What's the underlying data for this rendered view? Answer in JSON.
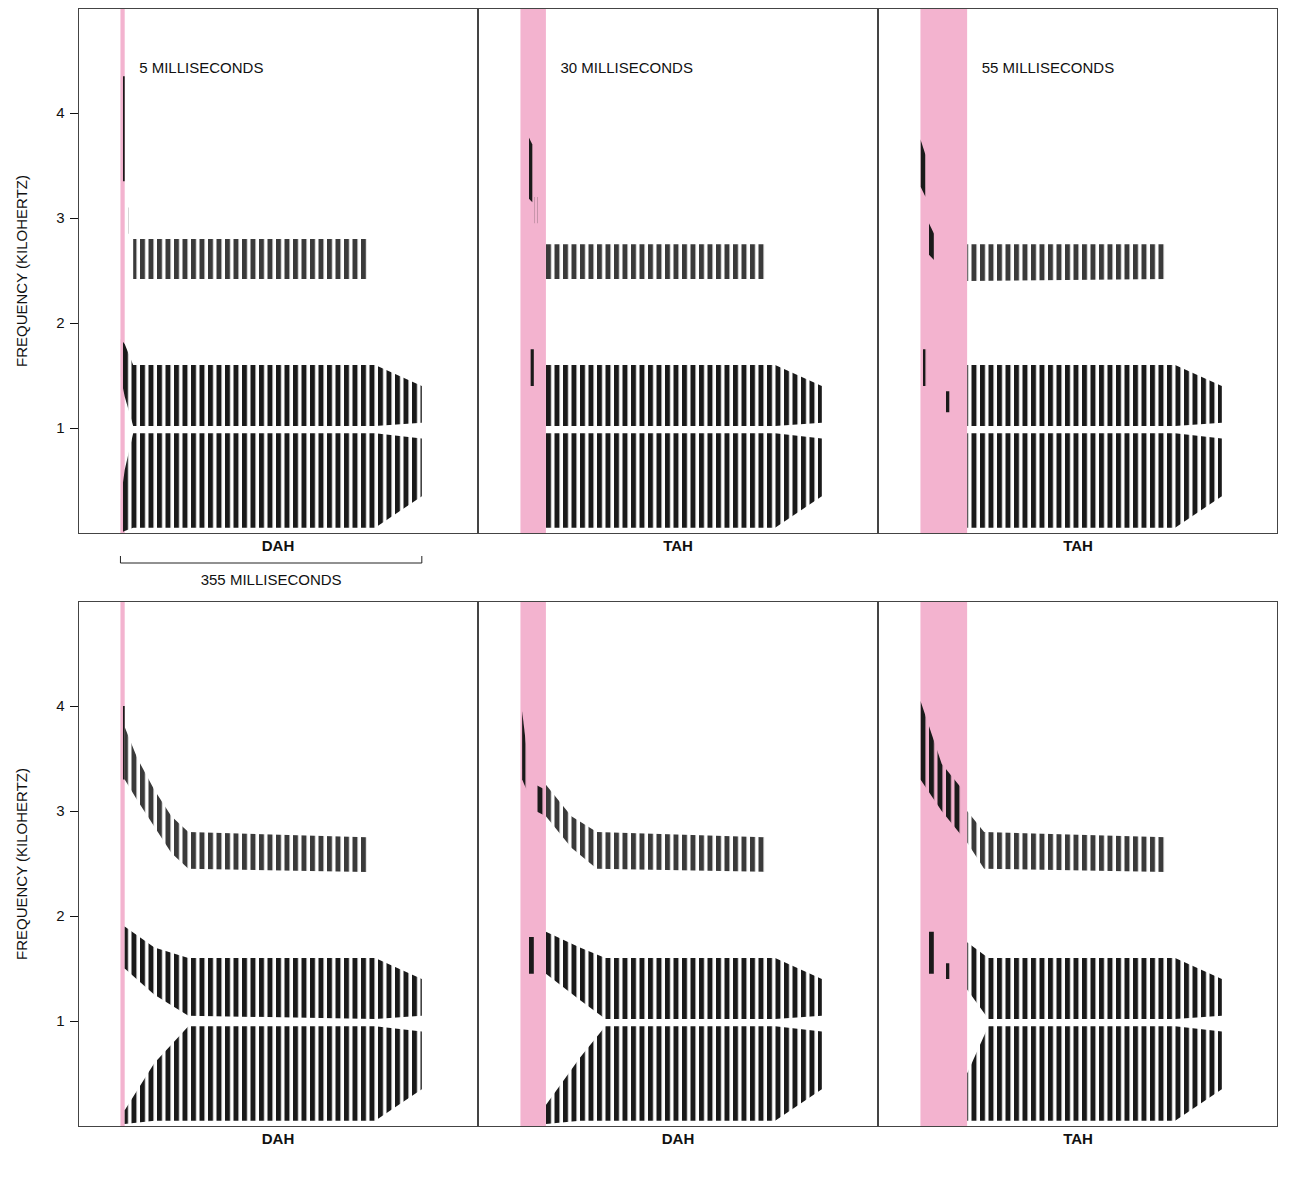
{
  "chart_data": [
    {
      "type": "spectrogram",
      "title": "5 MILLISECONDS",
      "xlabel": "DAH",
      "ylabel": "FREQUENCY (KILOHERTZ)",
      "xlim": [
        -50,
        420
      ],
      "ylim": [
        0,
        5
      ],
      "yticks": [
        1,
        2,
        3,
        4
      ],
      "tick_labels": "y",
      "grid": false,
      "aspiration": {
        "x": [
          0,
          5
        ],
        "color": "#f3b3cf"
      },
      "annotations": [
        {
          "text": "355 MILLISECONDS",
          "x": [
            0,
            355
          ]
        }
      ],
      "series": [
        {
          "color": "#1a1a1a",
          "x": [
            0,
            5
          ],
          "low": [
            3.35,
            3.35
          ],
          "high": [
            4.35,
            4.35
          ]
        },
        {
          "color": "#1a1a1a",
          "x": [
            9,
            12
          ],
          "low": [
            2.85,
            2.85
          ],
          "high": [
            3.1,
            3.1
          ]
        },
        {
          "color": "#1a1a1a",
          "x": [
            0,
            5,
            15,
            300,
            355
          ],
          "low": [
            0,
            0.02,
            0.05,
            0.05,
            0.35
          ],
          "high": [
            0.3,
            0.6,
            0.95,
            0.95,
            0.9
          ]
        },
        {
          "color": "#1a1a1a",
          "x": [
            0,
            5,
            15,
            300,
            355
          ],
          "low": [
            1.5,
            1.3,
            1.02,
            1.02,
            1.05
          ],
          "high": [
            1.85,
            1.8,
            1.6,
            1.6,
            1.4
          ]
        },
        {
          "color": "#3a3a3a",
          "x": [
            15,
            290
          ],
          "low": [
            2.42,
            2.42
          ],
          "high": [
            2.8,
            2.8
          ]
        }
      ]
    },
    {
      "type": "spectrogram",
      "title": "30 MILLISECONDS",
      "xlabel": "TAH",
      "xlim": [
        -50,
        420
      ],
      "ylim": [
        0,
        5
      ],
      "tick_labels": false,
      "grid": false,
      "aspiration": {
        "x": [
          0,
          30
        ],
        "color": "#f3b3cf"
      },
      "series": [
        {
          "color": "#1a1a1a",
          "x": [
            8,
            14
          ],
          "low": [
            3.2,
            3.15
          ],
          "high": [
            3.8,
            3.7
          ]
        },
        {
          "color": "#1a1a1a",
          "x": [
            16,
            20
          ],
          "low": [
            2.95,
            2.95
          ],
          "high": [
            3.2,
            3.2
          ]
        },
        {
          "color": "#1a1a1a",
          "x": [
            12,
            16
          ],
          "low": [
            1.4,
            1.4
          ],
          "high": [
            1.75,
            1.75
          ]
        },
        {
          "color": "#1a1a1a",
          "x": [
            30,
            300,
            355
          ],
          "low": [
            0.05,
            0.05,
            0.35
          ],
          "high": [
            0.95,
            0.95,
            0.9
          ]
        },
        {
          "color": "#1a1a1a",
          "x": [
            30,
            300,
            355
          ],
          "low": [
            1.02,
            1.02,
            1.05
          ],
          "high": [
            1.6,
            1.6,
            1.4
          ]
        },
        {
          "color": "#3a3a3a",
          "x": [
            30,
            290
          ],
          "low": [
            2.42,
            2.42
          ],
          "high": [
            2.75,
            2.75
          ]
        }
      ]
    },
    {
      "type": "spectrogram",
      "title": "55 MILLISECONDS",
      "xlabel": "TAH",
      "xlim": [
        -50,
        420
      ],
      "ylim": [
        0,
        5
      ],
      "tick_labels": false,
      "grid": false,
      "aspiration": {
        "x": [
          0,
          55
        ],
        "color": "#f3b3cf"
      },
      "series": [
        {
          "color": "#1a1a1a",
          "x": [
            0,
            6
          ],
          "low": [
            3.3,
            3.2
          ],
          "high": [
            3.75,
            3.6
          ]
        },
        {
          "color": "#1a1a1a",
          "x": [
            10,
            16
          ],
          "low": [
            2.65,
            2.6
          ],
          "high": [
            2.95,
            2.85
          ]
        },
        {
          "color": "#1a1a1a",
          "x": [
            3,
            9
          ],
          "low": [
            1.4,
            1.4
          ],
          "high": [
            1.75,
            1.75
          ]
        },
        {
          "color": "#1a1a1a",
          "x": [
            28,
            34
          ],
          "low": [
            1.15,
            1.15
          ],
          "high": [
            1.35,
            1.35
          ]
        },
        {
          "color": "#1a1a1a",
          "x": [
            55,
            300,
            355
          ],
          "low": [
            0.05,
            0.05,
            0.35
          ],
          "high": [
            0.95,
            0.95,
            0.9
          ]
        },
        {
          "color": "#1a1a1a",
          "x": [
            55,
            300,
            355
          ],
          "low": [
            1.02,
            1.02,
            1.05
          ],
          "high": [
            1.6,
            1.6,
            1.4
          ]
        },
        {
          "color": "#3a3a3a",
          "x": [
            55,
            290
          ],
          "low": [
            2.4,
            2.42
          ],
          "high": [
            2.75,
            2.75
          ]
        }
      ]
    },
    {
      "type": "spectrogram",
      "xlabel": "DAH",
      "ylabel": "FREQUENCY (KILOHERTZ)",
      "xlim": [
        -50,
        420
      ],
      "ylim": [
        0,
        5
      ],
      "yticks": [
        1,
        2,
        3,
        4
      ],
      "tick_labels": "y",
      "grid": false,
      "aspiration": {
        "x": [
          0,
          5
        ],
        "color": "#f3b3cf"
      },
      "series": [
        {
          "color": "#1a1a1a",
          "x": [
            0,
            5
          ],
          "low": [
            3.3,
            3.3
          ],
          "high": [
            4.0,
            4.0
          ]
        },
        {
          "color": "#1a1a1a",
          "x": [
            5,
            40,
            80,
            300,
            355
          ],
          "low": [
            0.02,
            0.05,
            0.05,
            0.05,
            0.35
          ],
          "high": [
            0.15,
            0.6,
            0.95,
            0.95,
            0.9
          ]
        },
        {
          "color": "#1a1a1a",
          "x": [
            5,
            40,
            80,
            300,
            355
          ],
          "low": [
            1.5,
            1.25,
            1.05,
            1.02,
            1.05
          ],
          "high": [
            1.9,
            1.7,
            1.6,
            1.6,
            1.4
          ]
        },
        {
          "color": "#3a3a3a",
          "x": [
            5,
            20,
            40,
            60,
            80,
            290
          ],
          "low": [
            3.3,
            3.1,
            2.85,
            2.6,
            2.45,
            2.42
          ],
          "high": [
            3.8,
            3.5,
            3.2,
            2.95,
            2.8,
            2.75
          ]
        }
      ]
    },
    {
      "type": "spectrogram",
      "xlabel": "DAH",
      "xlim": [
        -50,
        420
      ],
      "ylim": [
        0,
        5
      ],
      "tick_labels": false,
      "grid": false,
      "aspiration": {
        "x": [
          0,
          30
        ],
        "color": "#f3b3cf"
      },
      "series": [
        {
          "color": "#1a1a1a",
          "x": [
            2,
            10
          ],
          "low": [
            3.3,
            3.15
          ],
          "high": [
            3.95,
            3.4
          ]
        },
        {
          "color": "#1a1a1a",
          "x": [
            18,
            30
          ],
          "low": [
            3.0,
            2.95
          ],
          "high": [
            3.25,
            3.2
          ]
        },
        {
          "color": "#1a1a1a",
          "x": [
            10,
            16
          ],
          "low": [
            1.45,
            1.45
          ],
          "high": [
            1.8,
            1.8
          ]
        },
        {
          "color": "#1a1a1a",
          "x": [
            30,
            70,
            100,
            300,
            355
          ],
          "low": [
            0.02,
            0.05,
            0.05,
            0.05,
            0.35
          ],
          "high": [
            0.2,
            0.65,
            0.95,
            0.95,
            0.9
          ]
        },
        {
          "color": "#1a1a1a",
          "x": [
            30,
            70,
            100,
            300,
            355
          ],
          "low": [
            1.45,
            1.2,
            1.02,
            1.02,
            1.05
          ],
          "high": [
            1.85,
            1.7,
            1.6,
            1.6,
            1.4
          ]
        },
        {
          "color": "#3a3a3a",
          "x": [
            30,
            60,
            90,
            290
          ],
          "low": [
            2.95,
            2.65,
            2.45,
            2.42
          ],
          "high": [
            3.25,
            2.95,
            2.8,
            2.75
          ]
        }
      ]
    },
    {
      "type": "spectrogram",
      "xlabel": "TAH",
      "xlim": [
        -50,
        420
      ],
      "ylim": [
        0,
        5
      ],
      "tick_labels": false,
      "grid": false,
      "aspiration": {
        "x": [
          0,
          55
        ],
        "color": "#f3b3cf"
      },
      "series": [
        {
          "color": "#1a1a1a",
          "x": [
            0,
            25,
            50
          ],
          "low": [
            3.3,
            3.0,
            2.75
          ],
          "high": [
            4.05,
            3.45,
            3.2
          ]
        },
        {
          "color": "#1a1a1a",
          "x": [
            10,
            16
          ],
          "low": [
            1.45,
            1.45
          ],
          "high": [
            1.85,
            1.85
          ]
        },
        {
          "color": "#1a1a1a",
          "x": [
            30,
            34
          ],
          "low": [
            1.4,
            1.4
          ],
          "high": [
            1.55,
            1.55
          ]
        },
        {
          "color": "#1a1a1a",
          "x": [
            55,
            80,
            300,
            355
          ],
          "low": [
            0.05,
            0.05,
            0.05,
            0.35
          ],
          "high": [
            0.5,
            0.95,
            0.95,
            0.9
          ]
        },
        {
          "color": "#1a1a1a",
          "x": [
            55,
            80,
            300,
            355
          ],
          "low": [
            1.3,
            1.02,
            1.02,
            1.05
          ],
          "high": [
            1.75,
            1.6,
            1.6,
            1.4
          ]
        },
        {
          "color": "#3a3a3a",
          "x": [
            55,
            75,
            290
          ],
          "low": [
            2.7,
            2.45,
            2.42
          ],
          "high": [
            3.0,
            2.8,
            2.75
          ]
        }
      ]
    }
  ]
}
